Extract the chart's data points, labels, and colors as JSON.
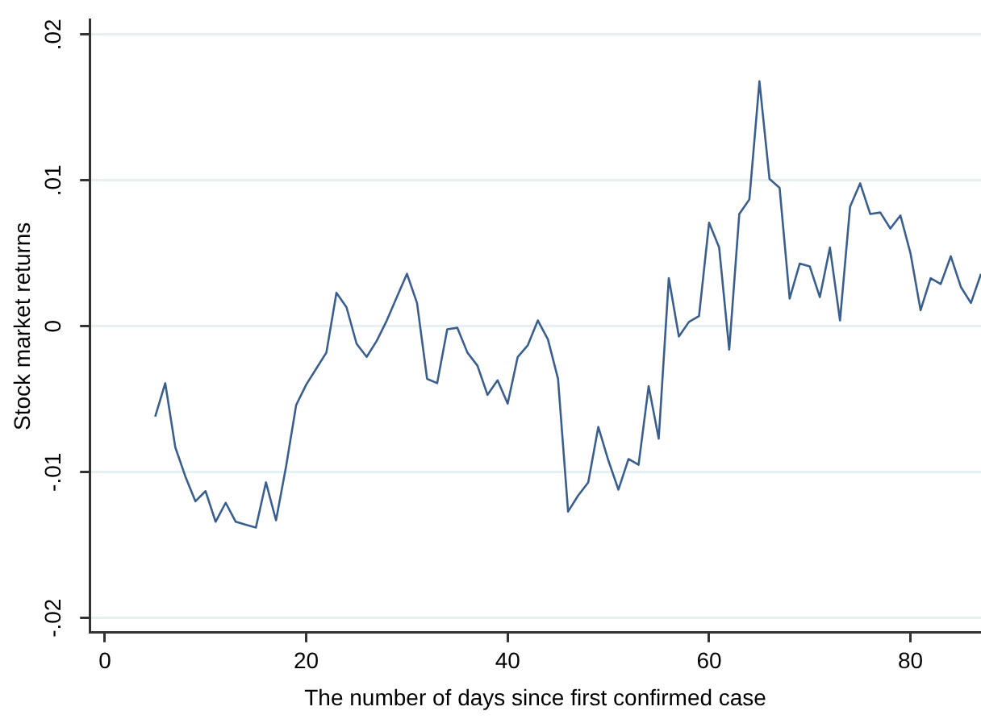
{
  "chart_data": {
    "type": "line",
    "xlabel": "The number of days since first confirmed case",
    "ylabel": "Stock market returns",
    "x": [
      5,
      6,
      7,
      8,
      9,
      10,
      11,
      12,
      13,
      14,
      15,
      16,
      17,
      18,
      19,
      20,
      21,
      22,
      23,
      24,
      25,
      26,
      27,
      28,
      29,
      30,
      31,
      32,
      33,
      34,
      35,
      36,
      37,
      38,
      39,
      40,
      41,
      42,
      43,
      44,
      45,
      46,
      47,
      48,
      49,
      50,
      51,
      52,
      53,
      54,
      55,
      56,
      57,
      58,
      59,
      60,
      61,
      62,
      63,
      64,
      65,
      66,
      67,
      68,
      69,
      70,
      71,
      72,
      73,
      74,
      75,
      76,
      77,
      78,
      79,
      80,
      81,
      82,
      83,
      84,
      85,
      86,
      87
    ],
    "series": [
      {
        "color": "#3a5f8f",
        "values": [
          -0.0062,
          -0.0039,
          -0.0083,
          -0.0103,
          -0.012,
          -0.0113,
          -0.0134,
          -0.0121,
          -0.0134,
          -0.0136,
          -0.0138,
          -0.0107,
          -0.0133,
          -0.0096,
          -0.0054,
          -0.004,
          -0.0029,
          -0.0018,
          0.0023,
          0.0013,
          -0.0012,
          -0.0021,
          -0.001,
          0.0004,
          0.002,
          0.0036,
          0.0016,
          -0.0036,
          -0.0039,
          -0.0002,
          -0.0001,
          -0.0018,
          -0.0027,
          -0.0047,
          -0.0037,
          -0.0053,
          -0.0021,
          -0.0013,
          0.0004,
          -0.0009,
          -0.0036,
          -0.0127,
          -0.0116,
          -0.0107,
          -0.0069,
          -0.0092,
          -0.0112,
          -0.0091,
          -0.0095,
          -0.0041,
          -0.0077,
          0.0033,
          -0.0007,
          0.0003,
          0.0007,
          0.0071,
          0.0054,
          -0.0016,
          0.0077,
          0.0087,
          0.0168,
          0.0101,
          0.0095,
          0.0019,
          0.0043,
          0.0041,
          0.002,
          0.0054,
          0.0004,
          0.0082,
          0.0098,
          0.0077,
          0.0078,
          0.0067,
          0.0076,
          0.005,
          0.0011,
          0.0033,
          0.0029,
          0.0048,
          0.0027,
          0.0016,
          0.0036
        ]
      }
    ],
    "xlim": [
      -1.5,
      87
    ],
    "xticks": [
      0,
      20,
      40,
      60,
      80
    ],
    "ylim": [
      -0.021,
      0.021
    ],
    "yticks": [
      {
        "value": -0.02,
        "label": "-.02"
      },
      {
        "value": -0.01,
        "label": "-.01"
      },
      0,
      {
        "value": 0.01,
        "label": ".01"
      },
      {
        "value": 0.02,
        "label": ".02"
      }
    ],
    "grid": "y",
    "legend": false,
    "marker": "none",
    "line_style": "solid"
  }
}
